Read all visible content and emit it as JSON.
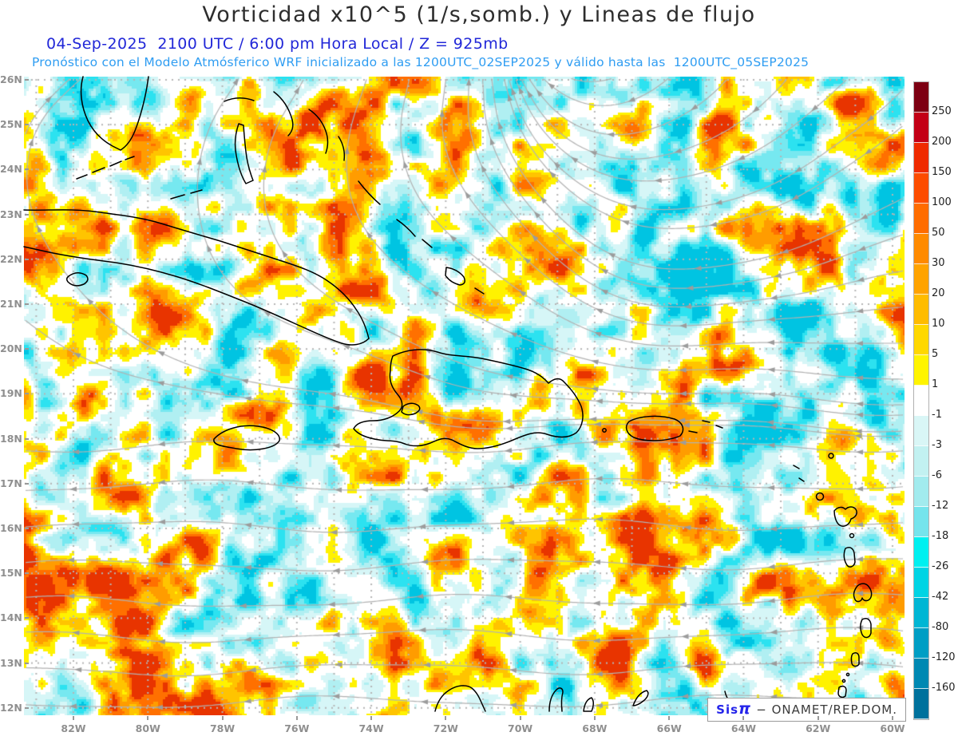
{
  "header": {
    "title": "Vorticidad x10^5 (1/s,somb.) y Lineas de flujo",
    "datetime_line": "04-Sep-2025  2100 UTC / 6:00 pm Hora Local / Z = 925mb",
    "forecast_line": "Pronóstico con el Modelo Atmósferico WRF inicializado a las 1200UTC_02SEP2025 y válido hasta las  1200UTC_05SEP2025"
  },
  "axes": {
    "lat_labels": [
      "26N",
      "25N",
      "24N",
      "23N",
      "22N",
      "21N",
      "20N",
      "19N",
      "18N",
      "17N",
      "16N",
      "15N",
      "14N",
      "13N",
      "12N"
    ],
    "lon_labels": [
      "82W",
      "80W",
      "78W",
      "76W",
      "74W",
      "72W",
      "70W",
      "68W",
      "66W",
      "64W",
      "62W",
      "60W"
    ]
  },
  "colorbar": {
    "tick_labels": [
      "250",
      "200",
      "150",
      "100",
      "50",
      "30",
      "20",
      "10",
      "5",
      "1",
      "-1",
      "-3",
      "-6",
      "-12",
      "-18",
      "-26",
      "-42",
      "-80",
      "-120",
      "-160"
    ],
    "segment_colors": [
      "#7d0013",
      "#c30016",
      "#ef2a00",
      "#fd4c00",
      "#ff6c00",
      "#ff8a00",
      "#ffa300",
      "#ffbc00",
      "#ffd800",
      "#fff400",
      "#ffffff",
      "#d9f6f6",
      "#c2f1f1",
      "#a2ebee",
      "#75e4ec",
      "#00f0f0",
      "#00d4e4",
      "#00b6d4",
      "#009ec4",
      "#0088b2",
      "#00719c"
    ]
  },
  "attribution": {
    "brand_prefix": "Sis",
    "brand_symbol": "π",
    "dash": "− ",
    "org": "ONAMET/REP.DOM."
  },
  "colors": {
    "title": "#2d2d2d",
    "datetime_line": "#2127d8",
    "forecast_line": "#2f9df2",
    "axis_labels": "#8f8f8f",
    "coastline": "#000000",
    "streamline": "#b2b2b2",
    "arrowhead": "#9c9c9c",
    "grid_dots": "#b5b5b5",
    "attribution_brand": "#2424ea",
    "attribution_text": "#3b3b3b",
    "field_positive_bands": [
      "#fff200",
      "#ffc400",
      "#ff9c00",
      "#ff7000",
      "#e83400"
    ],
    "field_negative_bands": [
      "#d6f6f7",
      "#b0eff2",
      "#76e8f0",
      "#2ce2f0",
      "#00c4e2"
    ]
  }
}
